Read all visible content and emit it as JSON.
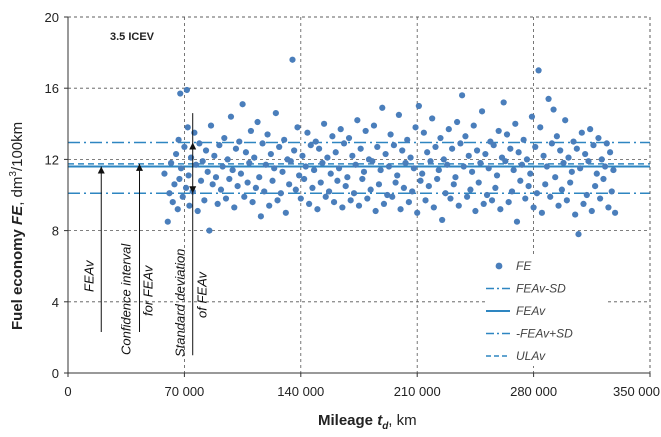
{
  "chart_data": {
    "type": "scatter",
    "panel_label": "3.5 ICEV",
    "xlabel": {
      "bold": "Mileage ",
      "italic": "t",
      "sub": "d",
      "unit": ", km"
    },
    "ylabel": {
      "bold": "Fuel economy ",
      "italic": "FE",
      "unit": ", dm",
      "sup": "3",
      "unit2": "/100km"
    },
    "xlim": [
      0,
      350000
    ],
    "ylim": [
      0,
      20
    ],
    "x_ticks": [
      0,
      70000,
      140000,
      210000,
      280000,
      350000
    ],
    "x_tick_labels": [
      "0",
      "70 000",
      "140 000",
      "210 000",
      "280 000",
      "350 000"
    ],
    "y_ticks": [
      0,
      4,
      8,
      12,
      16,
      20
    ],
    "y_tick_labels": [
      "0",
      "4",
      "8",
      "12",
      "16",
      "20"
    ],
    "grid": true,
    "legend_position": "bottom-right",
    "colors": {
      "points": "#4a7ebb",
      "lines": "#2e86c1",
      "grid": "#555555"
    },
    "series": [
      {
        "name": "FE",
        "style": "markers"
      },
      {
        "name": "FEAv-SD",
        "style": "dash-dot",
        "y": 10.1
      },
      {
        "name": "FEAv",
        "style": "solid",
        "y": 11.6
      },
      {
        "name": "-FEAv+SD",
        "style": "dash-dot",
        "y": 12.95
      },
      {
        "name": "ULAv",
        "style": "dashed",
        "y": 11.75
      }
    ],
    "annotations": [
      {
        "text": "FEAv",
        "x": 20000,
        "y_from": 2.3,
        "y_to": 11.6
      },
      {
        "text": "Confidence interval",
        "x": 43000,
        "y_from": 2.3,
        "y_to": 11.75
      },
      {
        "text": "for FEAv",
        "x": 43000
      },
      {
        "text": "Standard deviation",
        "x": 75000,
        "y_from": 12.95,
        "y_to": 10.1
      },
      {
        "text": "of FEAv",
        "x": 75000
      }
    ],
    "points": [
      [
        58000,
        11.2
      ],
      [
        60000,
        8.5
      ],
      [
        61000,
        10.1
      ],
      [
        62000,
        11.8
      ],
      [
        63000,
        9.6
      ],
      [
        64000,
        10.6
      ],
      [
        65000,
        12.3
      ],
      [
        66000,
        9.2
      ],
      [
        66500,
        13.1
      ],
      [
        67000,
        10.9
      ],
      [
        67500,
        15.7
      ],
      [
        68000,
        11.5
      ],
      [
        69000,
        9.9
      ],
      [
        70000,
        12.7
      ],
      [
        71000,
        10.4
      ],
      [
        71500,
        15.9
      ],
      [
        72000,
        13.8
      ],
      [
        72500,
        11.1
      ],
      [
        73000,
        9.4
      ],
      [
        74000,
        12.1
      ],
      [
        75000,
        10.2
      ],
      [
        76000,
        13.5
      ],
      [
        77000,
        11.7
      ],
      [
        78000,
        9.1
      ],
      [
        79000,
        12.9
      ],
      [
        80000,
        10.8
      ],
      [
        81000,
        11.9
      ],
      [
        82000,
        9.7
      ],
      [
        83000,
        12.5
      ],
      [
        84000,
        11.3
      ],
      [
        85000,
        8.0
      ],
      [
        86000,
        13.9
      ],
      [
        87000,
        10.6
      ],
      [
        88000,
        12.2
      ],
      [
        89000,
        11.0
      ],
      [
        90000,
        9.5
      ],
      [
        91000,
        12.8
      ],
      [
        92000,
        10.3
      ],
      [
        93000,
        11.6
      ],
      [
        94000,
        13.2
      ],
      [
        95000,
        9.8
      ],
      [
        96000,
        12.0
      ],
      [
        97000,
        10.9
      ],
      [
        98000,
        14.4
      ],
      [
        99000,
        11.4
      ],
      [
        100000,
        9.3
      ],
      [
        101000,
        12.6
      ],
      [
        102000,
        10.5
      ],
      [
        103000,
        13.0
      ],
      [
        104000,
        11.2
      ],
      [
        105000,
        15.1
      ],
      [
        106000,
        9.9
      ],
      [
        107000,
        12.4
      ],
      [
        108000,
        10.7
      ],
      [
        109000,
        11.8
      ],
      [
        110000,
        13.6
      ],
      [
        111000,
        9.6
      ],
      [
        112000,
        12.1
      ],
      [
        113000,
        10.4
      ],
      [
        114000,
        14.1
      ],
      [
        115000,
        11.0
      ],
      [
        116000,
        8.8
      ],
      [
        117000,
        12.9
      ],
      [
        118000,
        10.2
      ],
      [
        119000,
        11.7
      ],
      [
        120000,
        13.4
      ],
      [
        121000,
        9.4
      ],
      [
        122000,
        12.3
      ],
      [
        123000,
        10.8
      ],
      [
        124000,
        11.5
      ],
      [
        125000,
        14.6
      ],
      [
        126000,
        9.7
      ],
      [
        127000,
        12.7
      ],
      [
        128000,
        10.1
      ],
      [
        129000,
        11.3
      ],
      [
        130000,
        13.1
      ],
      [
        131000,
        9.0
      ],
      [
        132000,
        12.0
      ],
      [
        133000,
        10.6
      ],
      [
        134000,
        11.9
      ],
      [
        135000,
        17.6
      ],
      [
        136000,
        12.5
      ],
      [
        137000,
        10.3
      ],
      [
        138000,
        13.8
      ],
      [
        139000,
        11.1
      ],
      [
        140000,
        9.8
      ],
      [
        141000,
        12.2
      ],
      [
        142000,
        10.9
      ],
      [
        143000,
        11.6
      ],
      [
        144000,
        13.5
      ],
      [
        145000,
        9.5
      ],
      [
        146000,
        12.8
      ],
      [
        147000,
        10.4
      ],
      [
        148000,
        11.4
      ],
      [
        149000,
        13.0
      ],
      [
        150000,
        9.2
      ],
      [
        151000,
        12.6
      ],
      [
        152000,
        10.7
      ],
      [
        153000,
        11.8
      ],
      [
        154000,
        14.0
      ],
      [
        155000,
        9.9
      ],
      [
        156000,
        12.1
      ],
      [
        157000,
        10.2
      ],
      [
        158000,
        11.2
      ],
      [
        159000,
        13.3
      ],
      [
        160000,
        9.6
      ],
      [
        161000,
        12.4
      ],
      [
        162000,
        10.8
      ],
      [
        163000,
        11.5
      ],
      [
        164000,
        13.7
      ],
      [
        165000,
        9.3
      ],
      [
        166000,
        12.9
      ],
      [
        167000,
        10.5
      ],
      [
        168000,
        11.0
      ],
      [
        169000,
        13.2
      ],
      [
        170000,
        9.7
      ],
      [
        171000,
        12.2
      ],
      [
        172000,
        10.1
      ],
      [
        173000,
        11.7
      ],
      [
        174000,
        14.2
      ],
      [
        175000,
        9.4
      ],
      [
        176000,
        12.6
      ],
      [
        177000,
        10.9
      ],
      [
        178000,
        11.3
      ],
      [
        179000,
        13.6
      ],
      [
        180000,
        9.8
      ],
      [
        181000,
        12.0
      ],
      [
        182000,
        10.3
      ],
      [
        183000,
        11.9
      ],
      [
        184000,
        13.9
      ],
      [
        185000,
        9.1
      ],
      [
        186000,
        12.7
      ],
      [
        187000,
        10.6
      ],
      [
        188000,
        11.4
      ],
      [
        189000,
        14.9
      ],
      [
        190000,
        9.5
      ],
      [
        191000,
        12.3
      ],
      [
        192000,
        10.0
      ],
      [
        193000,
        11.6
      ],
      [
        194000,
        13.4
      ],
      [
        195000,
        9.9
      ],
      [
        196000,
        12.8
      ],
      [
        197000,
        10.7
      ],
      [
        198000,
        11.1
      ],
      [
        199000,
        14.5
      ],
      [
        200000,
        9.2
      ],
      [
        201000,
        12.5
      ],
      [
        202000,
        10.4
      ],
      [
        203000,
        11.8
      ],
      [
        204000,
        13.1
      ],
      [
        205000,
        9.6
      ],
      [
        206000,
        12.1
      ],
      [
        207000,
        10.2
      ],
      [
        208000,
        11.5
      ],
      [
        209000,
        13.8
      ],
      [
        210000,
        9.0
      ],
      [
        211000,
        15.0
      ],
      [
        212000,
        10.8
      ],
      [
        213000,
        11.2
      ],
      [
        214000,
        13.5
      ],
      [
        215000,
        9.7
      ],
      [
        216000,
        12.4
      ],
      [
        217000,
        10.5
      ],
      [
        218000,
        11.9
      ],
      [
        219000,
        14.3
      ],
      [
        220000,
        9.3
      ],
      [
        221000,
        12.7
      ],
      [
        222000,
        10.9
      ],
      [
        223000,
        11.4
      ],
      [
        224000,
        13.2
      ],
      [
        225000,
        8.6
      ],
      [
        226000,
        12.0
      ],
      [
        227000,
        10.1
      ],
      [
        228000,
        11.7
      ],
      [
        229000,
        13.7
      ],
      [
        230000,
        9.8
      ],
      [
        231000,
        12.6
      ],
      [
        232000,
        10.6
      ],
      [
        233000,
        11.0
      ],
      [
        234000,
        14.1
      ],
      [
        235000,
        9.4
      ],
      [
        236000,
        12.9
      ],
      [
        237000,
        15.6
      ],
      [
        238000,
        11.6
      ],
      [
        239000,
        13.3
      ],
      [
        240000,
        9.9
      ],
      [
        241000,
        12.2
      ],
      [
        242000,
        10.3
      ],
      [
        243000,
        11.3
      ],
      [
        244000,
        13.9
      ],
      [
        245000,
        9.1
      ],
      [
        246000,
        12.5
      ],
      [
        247000,
        10.7
      ],
      [
        248000,
        11.8
      ],
      [
        249000,
        14.7
      ],
      [
        250000,
        9.5
      ],
      [
        251000,
        12.3
      ],
      [
        252000,
        10.0
      ],
      [
        253000,
        11.5
      ],
      [
        254000,
        13.0
      ],
      [
        255000,
        9.7
      ],
      [
        256000,
        12.8
      ],
      [
        257000,
        10.4
      ],
      [
        258000,
        11.1
      ],
      [
        259000,
        13.6
      ],
      [
        260000,
        9.2
      ],
      [
        261000,
        12.1
      ],
      [
        262000,
        15.2
      ],
      [
        263000,
        11.9
      ],
      [
        264000,
        13.4
      ],
      [
        265000,
        9.6
      ],
      [
        266000,
        12.6
      ],
      [
        267000,
        10.2
      ],
      [
        268000,
        11.4
      ],
      [
        269000,
        14.0
      ],
      [
        270000,
        8.5
      ],
      [
        271000,
        12.4
      ],
      [
        272000,
        10.8
      ],
      [
        273000,
        11.7
      ],
      [
        274000,
        13.1
      ],
      [
        275000,
        9.8
      ],
      [
        276000,
        12.0
      ],
      [
        277000,
        10.5
      ],
      [
        278000,
        11.2
      ],
      [
        279000,
        14.4
      ],
      [
        280000,
        9.3
      ],
      [
        281000,
        12.7
      ],
      [
        282000,
        10.1
      ],
      [
        283000,
        17.0
      ],
      [
        284000,
        13.8
      ],
      [
        285000,
        9.0
      ],
      [
        286000,
        12.2
      ],
      [
        287000,
        10.6
      ],
      [
        288000,
        11.6
      ],
      [
        289000,
        15.4
      ],
      [
        290000,
        9.9
      ],
      [
        291000,
        12.9
      ],
      [
        292000,
        14.8
      ],
      [
        293000,
        11.0
      ],
      [
        294000,
        13.3
      ],
      [
        295000,
        9.4
      ],
      [
        296000,
        12.5
      ],
      [
        297000,
        10.3
      ],
      [
        298000,
        11.8
      ],
      [
        299000,
        14.2
      ],
      [
        300000,
        9.7
      ],
      [
        301000,
        12.1
      ],
      [
        302000,
        10.7
      ],
      [
        303000,
        11.3
      ],
      [
        304000,
        13.0
      ],
      [
        305000,
        8.9
      ],
      [
        306000,
        12.6
      ],
      [
        307000,
        7.8
      ],
      [
        308000,
        11.5
      ],
      [
        309000,
        13.5
      ],
      [
        310000,
        9.5
      ],
      [
        311000,
        12.3
      ],
      [
        312000,
        10.0
      ],
      [
        313000,
        11.9
      ],
      [
        314000,
        13.7
      ],
      [
        315000,
        9.1
      ],
      [
        316000,
        12.8
      ],
      [
        317000,
        10.5
      ],
      [
        318000,
        11.2
      ],
      [
        319000,
        13.2
      ],
      [
        320000,
        9.8
      ],
      [
        321000,
        12.0
      ],
      [
        322000,
        10.9
      ],
      [
        323000,
        11.6
      ],
      [
        324000,
        12.9
      ],
      [
        325000,
        9.3
      ],
      [
        326000,
        12.4
      ],
      [
        327000,
        10.2
      ],
      [
        328000,
        11.4
      ],
      [
        329000,
        9.0
      ]
    ]
  }
}
